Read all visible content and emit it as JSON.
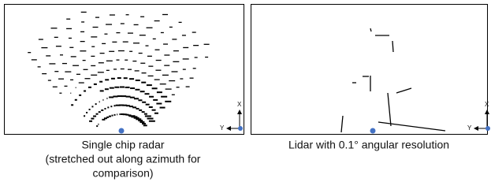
{
  "panels": [
    {
      "caption": [
        "Single chip radar",
        "(stretched out along azimuth for",
        "comparison)"
      ],
      "axis_x": "X",
      "axis_y": "Y"
    },
    {
      "caption": [
        "Lidar with 0.1° angular resolution"
      ],
      "axis_x": "X",
      "axis_y": "Y"
    }
  ]
}
